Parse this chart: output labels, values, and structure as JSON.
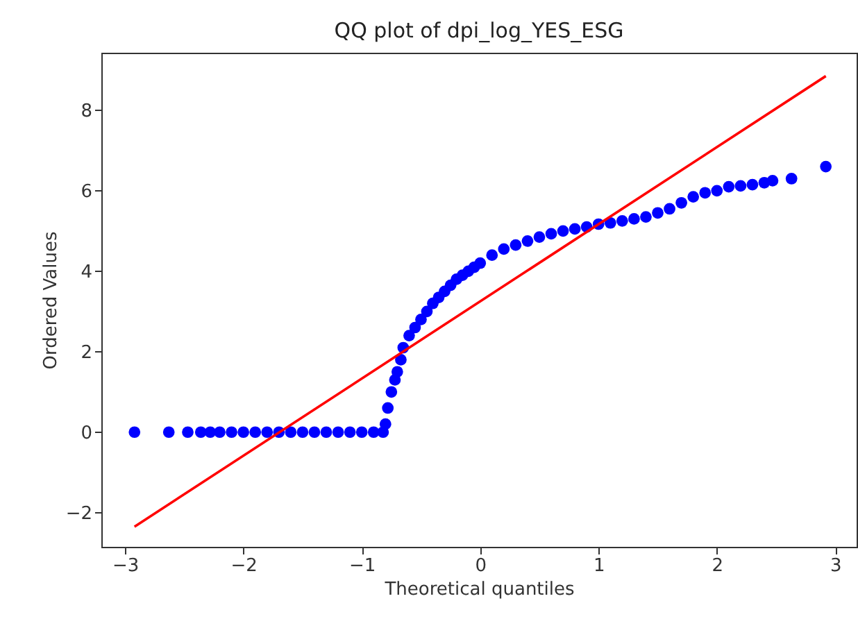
{
  "chart_data": {
    "type": "scatter",
    "title": "QQ plot of dpi_log_YES_ESG",
    "xlabel": "Theoretical quantiles",
    "ylabel": "Ordered Values",
    "xlim": [
      -3.2,
      3.18
    ],
    "ylim": [
      -2.85,
      9.43
    ],
    "xticks": [
      -3,
      -2,
      -1,
      0,
      1,
      2,
      3
    ],
    "yticks": [
      -2,
      0,
      2,
      4,
      6,
      8
    ],
    "grid": false,
    "marker": "circle",
    "series": [
      {
        "color": "#0000ff",
        "x": [
          -2.92,
          -2.63,
          -2.47,
          -2.36,
          -2.28,
          -2.2,
          -2.1,
          -2.0,
          -1.9,
          -1.8,
          -1.7,
          -1.6,
          -1.5,
          -1.4,
          -1.3,
          -1.2,
          -1.1,
          -1.0,
          -0.9,
          -0.82,
          -0.8,
          -0.78,
          -0.75,
          -0.72,
          -0.7,
          -0.67,
          -0.65,
          -0.6,
          -0.55,
          -0.5,
          -0.45,
          -0.4,
          -0.35,
          -0.3,
          -0.25,
          -0.2,
          -0.15,
          -0.1,
          -0.05,
          0,
          0.1,
          0.2,
          0.3,
          0.4,
          0.5,
          0.6,
          0.7,
          0.8,
          0.9,
          1.0,
          1.1,
          1.2,
          1.3,
          1.4,
          1.5,
          1.6,
          1.7,
          1.8,
          1.9,
          2.0,
          2.1,
          2.2,
          2.3,
          2.4,
          2.47,
          2.63,
          2.92
        ],
        "values": [
          0,
          0,
          0,
          0,
          0,
          0,
          0,
          0,
          0,
          0,
          0,
          0,
          0,
          0,
          0,
          0,
          0,
          0,
          0,
          0,
          0.2,
          0.6,
          1.0,
          1.3,
          1.5,
          1.8,
          2.1,
          2.4,
          2.6,
          2.8,
          3.0,
          3.2,
          3.35,
          3.5,
          3.65,
          3.8,
          3.9,
          4.0,
          4.1,
          4.2,
          4.4,
          4.55,
          4.65,
          4.75,
          4.85,
          4.93,
          5.0,
          5.05,
          5.1,
          5.17,
          5.2,
          5.25,
          5.3,
          5.35,
          5.45,
          5.55,
          5.7,
          5.85,
          5.95,
          6.0,
          6.1,
          6.12,
          6.15,
          6.2,
          6.25,
          6.3,
          6.6
        ]
      },
      {
        "type": "line",
        "color": "#ff0000",
        "marker": "none",
        "line_style": "solid",
        "x": [
          -2.92,
          2.92
        ],
        "values": [
          -2.35,
          8.85
        ]
      }
    ]
  }
}
